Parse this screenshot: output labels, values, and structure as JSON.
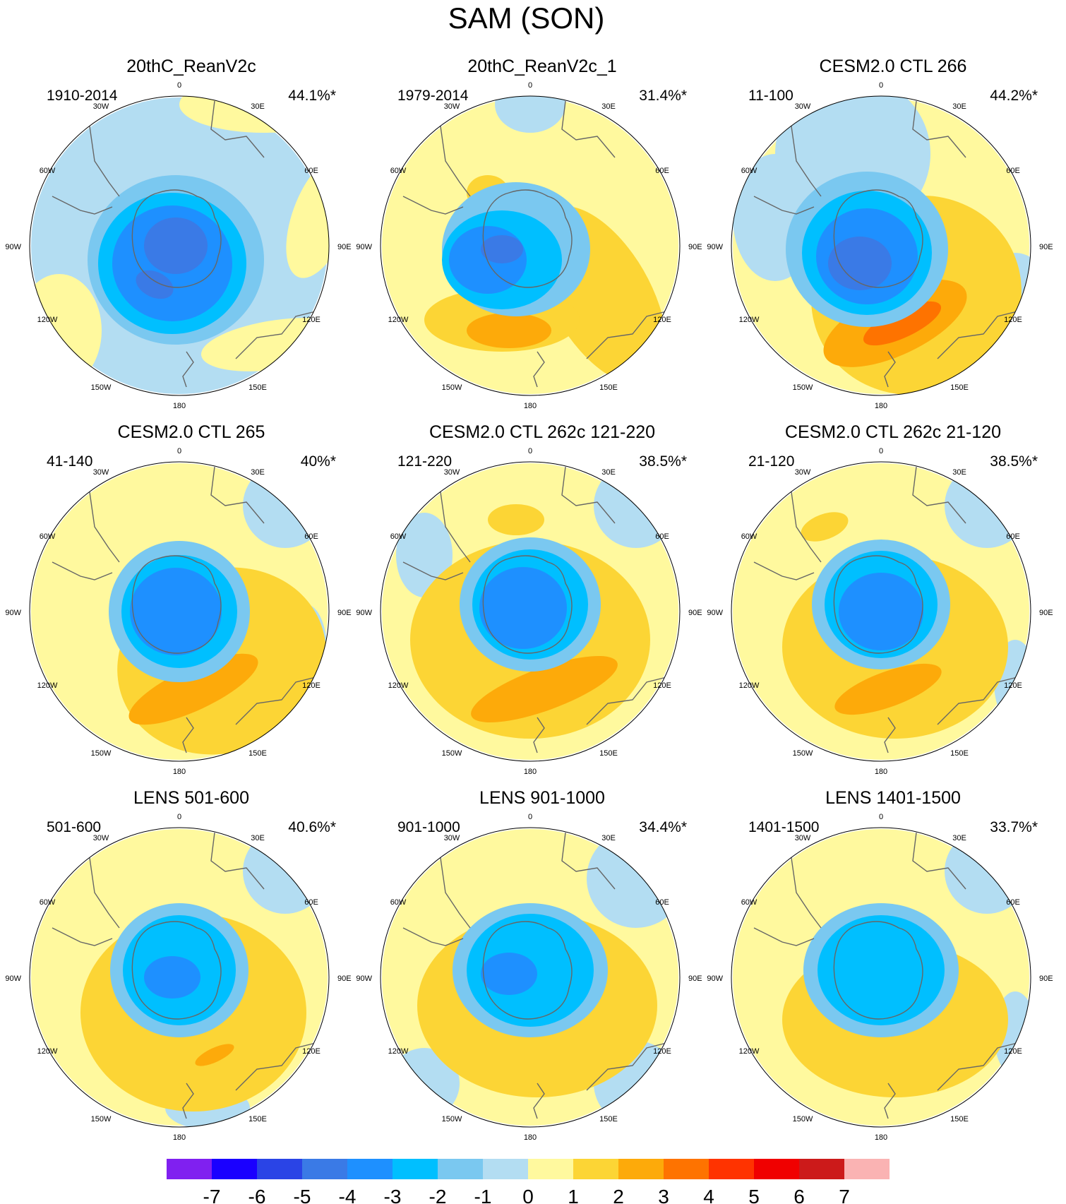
{
  "figure": {
    "title": "SAM (SON)"
  },
  "lon_labels": [
    "0",
    "30E",
    "60E",
    "90E",
    "120E",
    "150E",
    "180",
    "150W",
    "120W",
    "90W",
    "60W",
    "30W"
  ],
  "panels": [
    {
      "title": "20thC_ReanV2c",
      "years": "1910-2014",
      "variance": "44.1%*"
    },
    {
      "title": "20thC_ReanV2c_1",
      "years": "1979-2014",
      "variance": "31.4%*"
    },
    {
      "title": "CESM2.0 CTL 266",
      "years": "11-100",
      "variance": "44.2%*"
    },
    {
      "title": "CESM2.0 CTL 265",
      "years": "41-140",
      "variance": "40%*"
    },
    {
      "title": "CESM2.0 CTL 262c 121-220",
      "years": "121-220",
      "variance": "38.5%*"
    },
    {
      "title": "CESM2.0 CTL 262c 21-120",
      "years": "21-120",
      "variance": "38.5%*"
    },
    {
      "title": "LENS 501-600",
      "years": "501-600",
      "variance": "40.6%*"
    },
    {
      "title": "LENS 901-1000",
      "years": "901-1000",
      "variance": "34.4%*"
    },
    {
      "title": "LENS 1401-1500",
      "years": "1401-1500",
      "variance": "33.7%*"
    }
  ],
  "colorbar": {
    "colors": [
      "#8020f0",
      "#1a00ff",
      "#2a44e6",
      "#3a7ae6",
      "#1e90ff",
      "#00bfff",
      "#7ac8f0",
      "#b3ddf2",
      "#fff99e",
      "#fcd535",
      "#fdaa0a",
      "#fe7300",
      "#ff3300",
      "#f00000",
      "#cc1a1a",
      "#fab3b3"
    ],
    "labels": [
      "-7",
      "-6",
      "-5",
      "-4",
      "-3",
      "-2",
      "-1",
      "0",
      "1",
      "2",
      "3",
      "4",
      "5",
      "6",
      "7"
    ]
  },
  "legend_colors": {
    "neg3": "#3a7ae6",
    "neg2": "#1e90ff",
    "neg1": "#00bfff",
    "neg0": "#7ac8f0",
    "zero": "#b3ddf2",
    "pos0": "#fff99e",
    "pos1": "#fcd535",
    "pos2": "#fdaa0a",
    "pos3": "#fe7300"
  }
}
